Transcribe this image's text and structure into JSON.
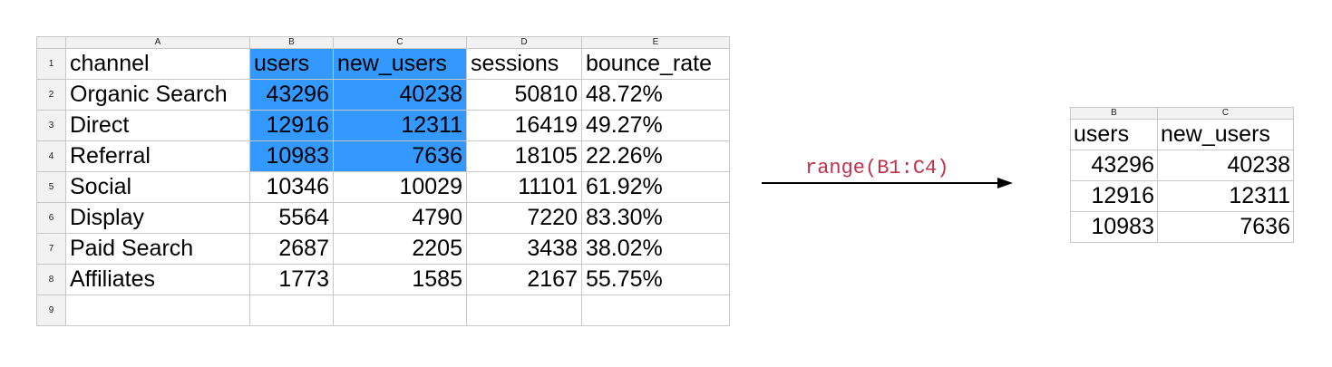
{
  "source": {
    "col_headers": [
      "A",
      "B",
      "C",
      "D",
      "E"
    ],
    "row_numbers": [
      "1",
      "2",
      "3",
      "4",
      "5",
      "6",
      "7",
      "8",
      "9"
    ],
    "header_row": [
      "channel",
      "users",
      "new_users",
      "sessions",
      "bounce_rate"
    ],
    "rows": [
      [
        "Organic Search",
        "43296",
        "40238",
        "50810",
        "48.72%"
      ],
      [
        "Direct",
        "12916",
        "12311",
        "16419",
        "49.27%"
      ],
      [
        "Referral",
        "10983",
        "7636",
        "18105",
        "22.26%"
      ],
      [
        "Social",
        "10346",
        "10029",
        "11101",
        "61.92%"
      ],
      [
        "Display",
        "5564",
        "4790",
        "7220",
        "83.30%"
      ],
      [
        "Paid Search",
        "2687",
        "2205",
        "3438",
        "38.02%"
      ],
      [
        "Affiliates",
        "1773",
        "1585",
        "2167",
        "55.75%"
      ]
    ],
    "selection_color": "#3399ff"
  },
  "operation": {
    "label": "range(B1:C4)",
    "color": "#c0314a"
  },
  "result": {
    "col_headers": [
      "B",
      "C"
    ],
    "header_row": [
      "users",
      "new_users"
    ],
    "rows": [
      [
        "43296",
        "40238"
      ],
      [
        "12916",
        "12311"
      ],
      [
        "10983",
        "7636"
      ]
    ]
  }
}
